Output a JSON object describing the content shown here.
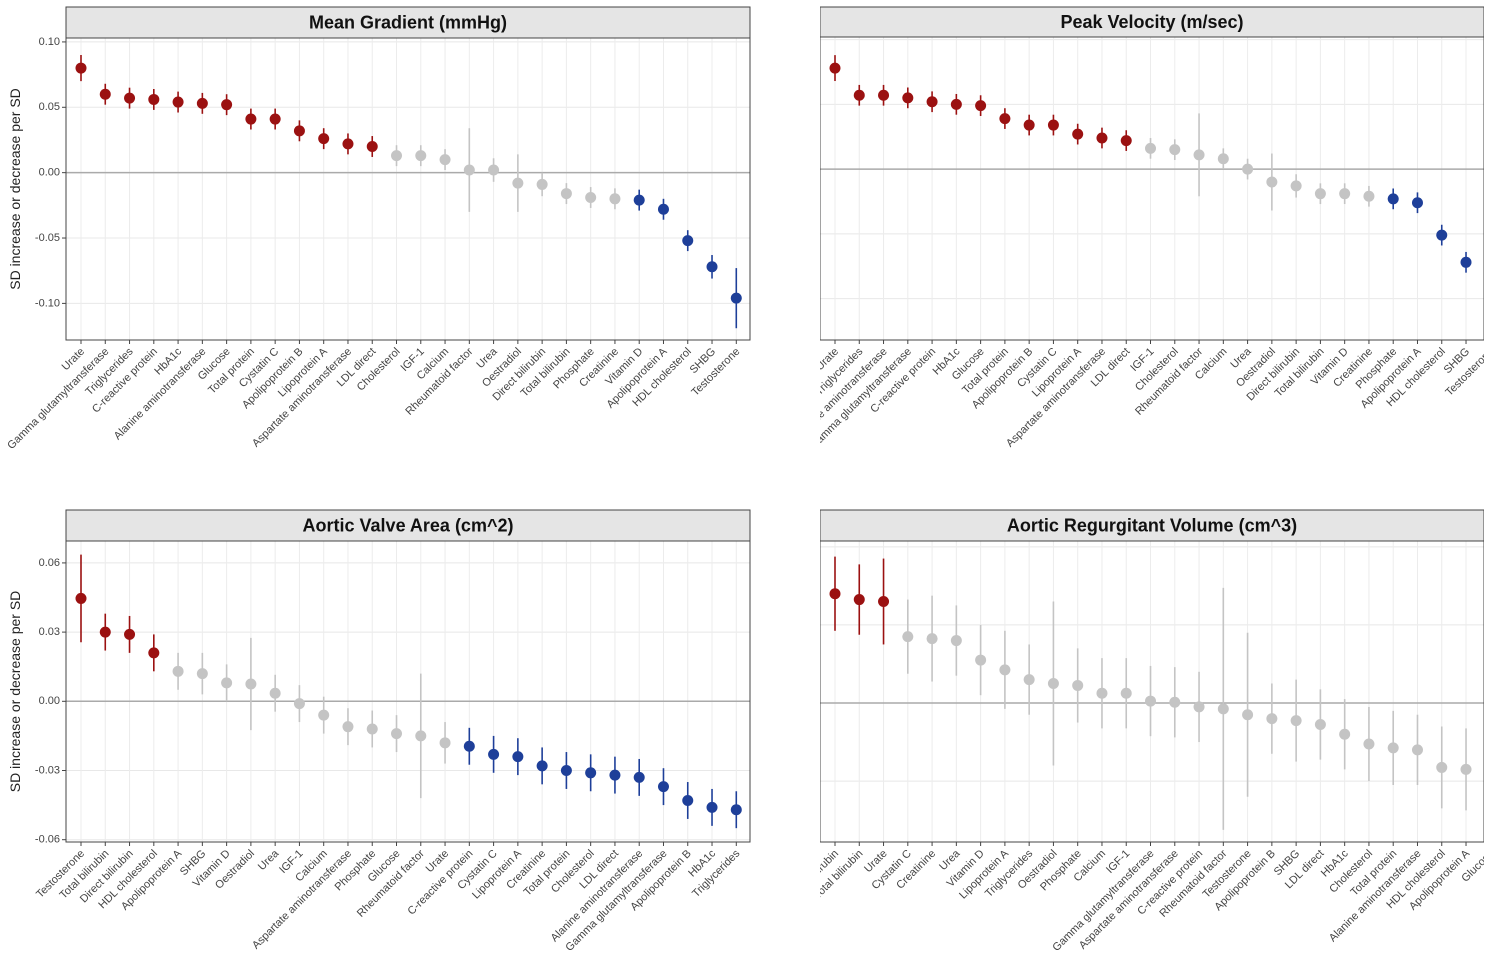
{
  "chart_data": [
    {
      "type": "errorbar",
      "title": "Mean Gradient (mmHg)",
      "y_label": "SD increase or decrease per SD",
      "categories": [
        "Urate",
        "Gamma glutamyltransferase",
        "Triglycerides",
        "C-reactive protein",
        "HbA1c",
        "Alanine aminotransferase",
        "Glucose",
        "Total protein",
        "Cystatin C",
        "Apolipoprotein B",
        "Lipoprotein A",
        "Aspartate aminotransferase",
        "LDL direct",
        "Cholesterol",
        "IGF-1",
        "Calcium",
        "Rheumatoid factor",
        "Urea",
        "Oestradiol",
        "Direct bilirubin",
        "Total bilirubin",
        "Phosphate",
        "Creatinine",
        "Vitamin D",
        "Apolipoprotein A",
        "HDL cholesterol",
        "SHBG",
        "Testosterone"
      ],
      "values": [
        0.08,
        0.06,
        0.057,
        0.056,
        0.054,
        0.053,
        0.052,
        0.041,
        0.041,
        0.032,
        0.026,
        0.022,
        0.02,
        0.013,
        0.013,
        0.01,
        0.002,
        0.002,
        -0.008,
        -0.009,
        -0.016,
        -0.019,
        -0.02,
        -0.021,
        -0.028,
        -0.052,
        -0.072,
        -0.096
      ],
      "errors": [
        0.01,
        0.008,
        0.008,
        0.008,
        0.008,
        0.008,
        0.008,
        0.008,
        0.008,
        0.008,
        0.008,
        0.008,
        0.008,
        0.008,
        0.008,
        0.008,
        0.032,
        0.009,
        0.022,
        0.009,
        0.008,
        0.008,
        0.008,
        0.008,
        0.008,
        0.008,
        0.009,
        0.023
      ],
      "colors": [
        "#9b1111",
        "#9b1111",
        "#9b1111",
        "#9b1111",
        "#9b1111",
        "#9b1111",
        "#9b1111",
        "#9b1111",
        "#9b1111",
        "#9b1111",
        "#9b1111",
        "#9b1111",
        "#9b1111",
        "#c4c4c4",
        "#c4c4c4",
        "#c4c4c4",
        "#c4c4c4",
        "#c4c4c4",
        "#c4c4c4",
        "#c4c4c4",
        "#c4c4c4",
        "#c4c4c4",
        "#c4c4c4",
        "#1e3f99",
        "#1e3f99",
        "#1e3f99",
        "#1e3f99",
        "#1e3f99"
      ],
      "ylim": [
        -0.128,
        0.103
      ],
      "yticks": [
        {
          "value": -0.1,
          "label": "-0.10"
        },
        {
          "value": -0.05,
          "label": "-0.05"
        },
        {
          "value": 0,
          "label": "0.00"
        },
        {
          "value": 0.05,
          "label": "0.05"
        },
        {
          "value": 0.1,
          "label": "0.10"
        }
      ],
      "reference_line": 0,
      "grid": true
    },
    {
      "type": "errorbar",
      "title": "Peak Velocity (m/sec)",
      "y_label": "SD increase or decrease per SD",
      "categories": [
        "Urate",
        "Triglycerides",
        "Alanine aminotransferase",
        "Gamma glutamyltransferase",
        "C-reactive protein",
        "HbA1c",
        "Glucose",
        "Total protein",
        "Apolipoprotein B",
        "Cystatin C",
        "Lipoprotein A",
        "Aspartate aminotransferase",
        "LDL direct",
        "IGF-1",
        "Cholesterol",
        "Rheumatoid factor",
        "Calcium",
        "Urea",
        "Oestradiol",
        "Direct bilirubin",
        "Total bilirubin",
        "Vitamin D",
        "Creatinine",
        "Phosphate",
        "Apolipoprotein A",
        "HDL cholesterol",
        "SHBG",
        "Testosterone"
      ],
      "values": [
        0.078,
        0.057,
        0.057,
        0.055,
        0.052,
        0.05,
        0.049,
        0.039,
        0.034,
        0.034,
        0.027,
        0.024,
        0.022,
        0.016,
        0.015,
        0.011,
        0.008,
        0.0,
        -0.01,
        -0.013,
        -0.019,
        -0.019,
        -0.021,
        -0.023,
        -0.026,
        -0.051,
        -0.072,
        null
      ],
      "errors": [
        0.01,
        0.008,
        0.008,
        0.008,
        0.008,
        0.008,
        0.008,
        0.008,
        0.008,
        0.008,
        0.008,
        0.008,
        0.008,
        0.008,
        0.008,
        0.032,
        0.008,
        0.008,
        0.022,
        0.009,
        0.008,
        0.008,
        0.008,
        0.008,
        0.008,
        0.008,
        0.008,
        null
      ],
      "colors": [
        "#9b1111",
        "#9b1111",
        "#9b1111",
        "#9b1111",
        "#9b1111",
        "#9b1111",
        "#9b1111",
        "#9b1111",
        "#9b1111",
        "#9b1111",
        "#9b1111",
        "#9b1111",
        "#9b1111",
        "#c4c4c4",
        "#c4c4c4",
        "#c4c4c4",
        "#c4c4c4",
        "#c4c4c4",
        "#c4c4c4",
        "#c4c4c4",
        "#c4c4c4",
        "#c4c4c4",
        "#c4c4c4",
        "#1e3f99",
        "#1e3f99",
        "#1e3f99",
        "#1e3f99",
        "#1e3f99"
      ],
      "ylim": [
        -0.132,
        0.102
      ],
      "yticks": [
        {
          "value": -0.1,
          "label": "-0.10"
        },
        {
          "value": -0.05,
          "label": "-0.05"
        },
        {
          "value": 0,
          "label": "0.00"
        },
        {
          "value": 0.05,
          "label": "0.05"
        },
        {
          "value": 0.1,
          "label": "0.10"
        }
      ],
      "reference_line": 0,
      "grid": true
    },
    {
      "type": "errorbar",
      "title": "Aortic Valve Area (cm^2)",
      "y_label": "SD increase or decrease per SD",
      "categories": [
        "Testosterone",
        "Total bilirubin",
        "Direct bilirubin",
        "HDL cholesterol",
        "Apolipoprotein A",
        "SHBG",
        "Vitamin D",
        "Oestradiol",
        "Urea",
        "IGF-1",
        "Calcium",
        "Aspartate aminotransferase",
        "Phosphate",
        "Glucose",
        "Rheumatoid factor",
        "Urate",
        "C-reactive protein",
        "Cystatin C",
        "Lipoprotein A",
        "Creatinine",
        "Total protein",
        "Cholesterol",
        "LDL direct",
        "Alanine aminotransferase",
        "Gamma glutamyltransferase",
        "Apolipoprotein B",
        "HbA1c",
        "Triglycerides"
      ],
      "values": [
        0.0446,
        0.03,
        0.029,
        0.021,
        0.013,
        0.012,
        0.008,
        0.0075,
        0.0035,
        -0.001,
        -0.006,
        -0.011,
        -0.012,
        -0.014,
        -0.015,
        -0.018,
        -0.0195,
        -0.023,
        -0.024,
        -0.028,
        -0.03,
        -0.031,
        -0.032,
        -0.033,
        -0.037,
        -0.043,
        -0.046,
        -0.047
      ],
      "errors": [
        0.019,
        0.008,
        0.008,
        0.008,
        0.008,
        0.009,
        0.008,
        0.02,
        0.008,
        0.008,
        0.008,
        0.008,
        0.008,
        0.008,
        0.027,
        0.009,
        0.008,
        0.008,
        0.008,
        0.008,
        0.008,
        0.008,
        0.008,
        0.008,
        0.008,
        0.008,
        0.008,
        0.008
      ],
      "colors": [
        "#9b1111",
        "#9b1111",
        "#9b1111",
        "#9b1111",
        "#c4c4c4",
        "#c4c4c4",
        "#c4c4c4",
        "#c4c4c4",
        "#c4c4c4",
        "#c4c4c4",
        "#c4c4c4",
        "#c4c4c4",
        "#c4c4c4",
        "#c4c4c4",
        "#c4c4c4",
        "#c4c4c4",
        "#1e3f99",
        "#1e3f99",
        "#1e3f99",
        "#1e3f99",
        "#1e3f99",
        "#1e3f99",
        "#1e3f99",
        "#1e3f99",
        "#1e3f99",
        "#1e3f99",
        "#1e3f99",
        "#1e3f99"
      ],
      "ylim": [
        -0.061,
        0.0695
      ],
      "yticks": [
        {
          "value": -0.06,
          "label": "-0.06"
        },
        {
          "value": -0.03,
          "label": "-0.03"
        },
        {
          "value": 0,
          "label": "0.00"
        },
        {
          "value": 0.03,
          "label": "0.03"
        },
        {
          "value": 0.06,
          "label": "0.06"
        }
      ],
      "reference_line": 0,
      "grid": true
    },
    {
      "type": "errorbar",
      "title": "Aortic Regurgitant Volume (cm^3)",
      "y_label": "SD increase or decrease per SD",
      "categories": [
        "Direct bilirubin",
        "Total bilirubin",
        "Urate",
        "Cystatin C",
        "Creatinine",
        "Urea",
        "Vitamin D",
        "Lipoprotein A",
        "Triglycerides",
        "Oestradiol",
        "Phosphate",
        "Calcium",
        "IGF-1",
        "Gamma glutamyltransferase",
        "Aspartate aminotransferase",
        "C-reactive protein",
        "Rheumatoid factor",
        "Testosterone",
        "Apolipoprotein B",
        "SHBG",
        "LDL direct",
        "HbA1c",
        "Cholesterol",
        "Total protein",
        "Alanine aminotransferase",
        "HDL cholesterol",
        "Apolipoprotein A",
        "Glucose"
      ],
      "values": [
        0.028,
        0.0265,
        0.026,
        0.017,
        0.0165,
        0.016,
        0.011,
        0.0085,
        0.006,
        0.005,
        0.0045,
        0.0025,
        0.0025,
        0.0005,
        0.0002,
        -0.001,
        -0.0015,
        -0.003,
        -0.004,
        -0.0045,
        -0.0055,
        -0.008,
        -0.0105,
        -0.0115,
        -0.012,
        -0.0165,
        -0.017,
        null
      ],
      "errors": [
        0.0095,
        0.009,
        0.011,
        0.0095,
        0.011,
        0.009,
        0.009,
        0.01,
        0.009,
        0.021,
        0.0095,
        0.009,
        0.009,
        0.009,
        0.009,
        0.009,
        0.031,
        0.021,
        0.009,
        0.0105,
        0.009,
        0.009,
        0.0095,
        0.0095,
        0.009,
        0.0105,
        0.0105,
        null
      ],
      "colors": [
        "#9b1111",
        "#9b1111",
        "#9b1111",
        "#c4c4c4",
        "#c4c4c4",
        "#c4c4c4",
        "#c4c4c4",
        "#c4c4c4",
        "#c4c4c4",
        "#c4c4c4",
        "#c4c4c4",
        "#c4c4c4",
        "#c4c4c4",
        "#c4c4c4",
        "#c4c4c4",
        "#c4c4c4",
        "#c4c4c4",
        "#c4c4c4",
        "#c4c4c4",
        "#c4c4c4",
        "#c4c4c4",
        "#c4c4c4",
        "#c4c4c4",
        "#c4c4c4",
        "#c4c4c4",
        "#c4c4c4",
        "#c4c4c4",
        "#c4c4c4"
      ],
      "ylim": [
        -0.0356,
        0.0415
      ],
      "yticks": [
        {
          "value": -0.02,
          "label": "-0.02"
        },
        {
          "value": 0,
          "label": "0.00"
        },
        {
          "value": 0.02,
          "label": "0.02"
        },
        {
          "value": 0.04,
          "label": "0.04"
        }
      ],
      "reference_line": 0,
      "grid": true
    }
  ]
}
